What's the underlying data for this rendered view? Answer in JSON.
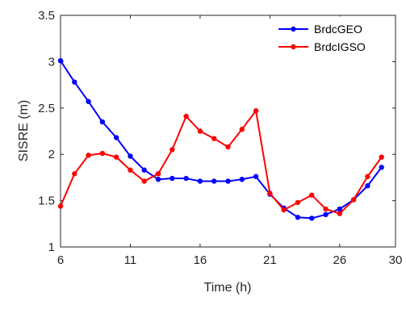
{
  "chart_data": {
    "type": "line",
    "xlabel": "Time (h)",
    "ylabel": "SISRE (m)",
    "xlim": [
      6,
      30
    ],
    "ylim": [
      1,
      3.5
    ],
    "xticks": [
      6,
      11,
      16,
      21,
      26,
      30
    ],
    "yticks": [
      1,
      1.5,
      2,
      2.5,
      3,
      3.5
    ],
    "yticklabels": [
      "1",
      "1.5",
      "2",
      "2.5",
      "3",
      "3.5"
    ],
    "grid": false,
    "legend": "top-right",
    "x": [
      6,
      7,
      8,
      9,
      10,
      11,
      12,
      13,
      14,
      15,
      16,
      17,
      18,
      19,
      20,
      21,
      22,
      23,
      24,
      25,
      26,
      27,
      28,
      29
    ],
    "series": [
      {
        "name": "BrdcGEO",
        "color": "#0000ff",
        "values": [
          3.01,
          2.78,
          2.57,
          2.35,
          2.18,
          1.98,
          1.83,
          1.73,
          1.74,
          1.74,
          1.71,
          1.71,
          1.71,
          1.73,
          1.76,
          1.57,
          1.42,
          1.32,
          1.31,
          1.35,
          1.41,
          1.51,
          1.66,
          1.86
        ]
      },
      {
        "name": "BrdcIGSO",
        "color": "#ff0000",
        "values": [
          1.44,
          1.79,
          1.99,
          2.01,
          1.97,
          1.83,
          1.71,
          1.79,
          2.05,
          2.41,
          2.25,
          2.17,
          2.08,
          2.27,
          2.47,
          1.58,
          1.4,
          1.48,
          1.56,
          1.41,
          1.36,
          1.51,
          1.76,
          1.97
        ]
      }
    ]
  }
}
